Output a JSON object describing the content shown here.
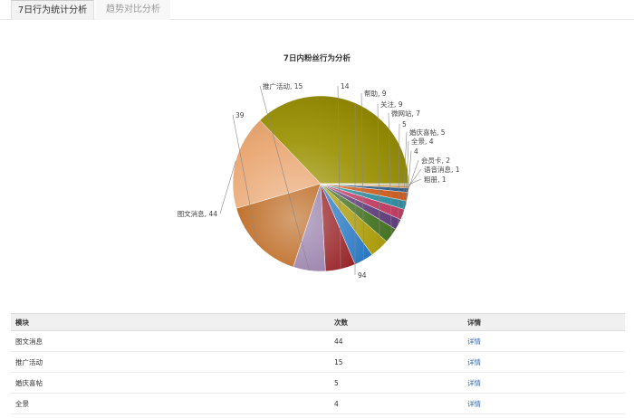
{
  "tabs": [
    {
      "label": "7日行为统计分析",
      "active": true
    },
    {
      "label": "趋势对比分析",
      "active": false
    }
  ],
  "chart_data": {
    "type": "pie",
    "title": "7日内粉丝行为分析",
    "slices": [
      {
        "label": "",
        "value": 94,
        "color": "#9a9100"
      },
      {
        "label": "图文消息",
        "value": 44,
        "color": "#e9a36c"
      },
      {
        "label": "",
        "value": 39,
        "color": "#b35300"
      },
      {
        "label": "推广活动",
        "value": 15,
        "color": "#8b6fa0"
      },
      {
        "label": "",
        "value": 14,
        "color": "#8c0c10"
      },
      {
        "label": "帮助",
        "value": 9,
        "color": "#1a6fbf"
      },
      {
        "label": "关注",
        "value": 9,
        "color": "#a89800"
      },
      {
        "label": "微网站",
        "value": 7,
        "color": "#3e6e1a"
      },
      {
        "label": "",
        "value": 5,
        "color": "#5a3878"
      },
      {
        "label": "婚庆喜帖",
        "value": 5,
        "color": "#c0365e"
      },
      {
        "label": "全景",
        "value": 4,
        "color": "#2a8ca0"
      },
      {
        "label": "",
        "value": 4,
        "color": "#d25a18"
      },
      {
        "label": "会员卡",
        "value": 2,
        "color": "#2a5e8c"
      },
      {
        "label": "语音消息",
        "value": 1,
        "color": "#e08a2a"
      },
      {
        "label": "粗册",
        "value": 1,
        "color": "#c8c8b0"
      }
    ]
  },
  "table": {
    "headers": [
      "模块",
      "次数",
      "详情"
    ],
    "rows": [
      [
        "图文消息",
        "44",
        "详情"
      ],
      [
        "推广活动",
        "15",
        "详情"
      ],
      [
        "婚庆喜帖",
        "5",
        "详情"
      ],
      [
        "全景",
        "4",
        "详情"
      ]
    ]
  }
}
